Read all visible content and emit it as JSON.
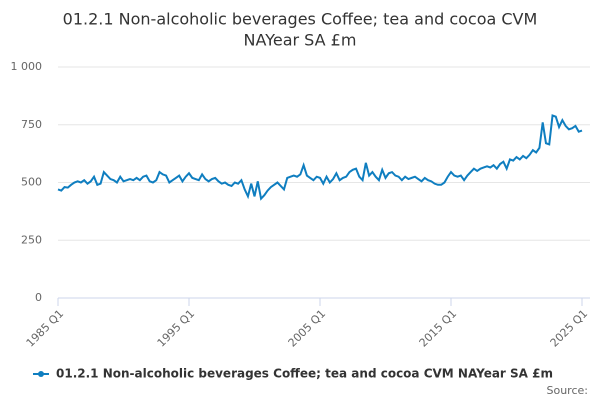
{
  "chart_data": {
    "type": "line",
    "title_lines": [
      "01.2.1 Non-alcoholic beverages Coffee; tea and cocoa CVM",
      "NAYear SA £m"
    ],
    "source": "Source:",
    "categories": [
      "1985 Q1",
      null,
      null,
      null,
      null,
      null,
      null,
      null,
      null,
      null,
      null,
      null,
      null,
      null,
      null,
      null,
      null,
      null,
      null,
      null,
      null,
      null,
      null,
      null,
      null,
      null,
      null,
      null,
      null,
      null,
      null,
      null,
      null,
      null,
      null,
      null,
      null,
      null,
      null,
      null,
      "1995 Q1",
      null,
      null,
      null,
      null,
      null,
      null,
      null,
      null,
      null,
      null,
      null,
      null,
      null,
      null,
      null,
      null,
      null,
      null,
      null,
      null,
      null,
      null,
      null,
      null,
      null,
      null,
      null,
      null,
      null,
      null,
      null,
      null,
      null,
      null,
      null,
      null,
      null,
      null,
      null,
      "2005 Q1",
      null,
      null,
      null,
      null,
      null,
      null,
      null,
      null,
      null,
      null,
      null,
      null,
      null,
      null,
      null,
      null,
      null,
      null,
      null,
      null,
      null,
      null,
      null,
      null,
      null,
      null,
      null,
      null,
      null,
      null,
      null,
      null,
      null,
      null,
      null,
      null,
      null,
      null,
      null,
      "2015 Q1",
      null,
      null,
      null,
      null,
      null,
      null,
      null,
      null,
      null,
      null,
      null,
      null,
      null,
      null,
      null,
      null,
      null,
      null,
      null,
      null,
      null,
      null,
      null,
      null,
      null,
      null,
      null,
      null,
      null,
      null,
      null,
      null,
      null,
      null,
      null,
      null,
      null,
      null,
      null,
      "2025 Q1"
    ],
    "series": [
      {
        "name": "01.2.1 Non-alcoholic beverages Coffee; tea and cocoa CVM NAYear SA £m",
        "color": "#0f7ec0",
        "values": [
          470,
          465,
          480,
          478,
          490,
          500,
          505,
          500,
          510,
          495,
          505,
          525,
          490,
          495,
          545,
          530,
          515,
          510,
          500,
          525,
          505,
          510,
          515,
          510,
          520,
          510,
          525,
          530,
          505,
          500,
          510,
          545,
          535,
          530,
          500,
          510,
          520,
          530,
          505,
          525,
          540,
          520,
          515,
          510,
          535,
          515,
          505,
          515,
          520,
          505,
          495,
          500,
          490,
          485,
          500,
          495,
          510,
          470,
          440,
          495,
          440,
          505,
          430,
          445,
          465,
          480,
          490,
          500,
          485,
          470,
          520,
          525,
          530,
          525,
          535,
          575,
          530,
          520,
          510,
          525,
          520,
          495,
          525,
          500,
          515,
          540,
          510,
          520,
          525,
          545,
          555,
          560,
          525,
          510,
          585,
          530,
          545,
          525,
          510,
          555,
          520,
          540,
          545,
          530,
          525,
          510,
          525,
          515,
          520,
          525,
          515,
          505,
          520,
          510,
          505,
          495,
          490,
          490,
          500,
          525,
          545,
          530,
          525,
          530,
          510,
          530,
          545,
          560,
          550,
          560,
          565,
          570,
          565,
          575,
          560,
          580,
          590,
          560,
          600,
          595,
          610,
          600,
          615,
          605,
          620,
          640,
          630,
          650,
          760,
          670,
          665,
          790,
          785,
          740,
          770,
          745,
          730,
          735,
          745,
          720,
          725
        ]
      }
    ],
    "ylim": [
      0,
      1000
    ],
    "yticks": [
      0,
      250,
      500,
      750,
      {
        "value": 1000,
        "label": "1 000"
      }
    ],
    "grid": true
  }
}
